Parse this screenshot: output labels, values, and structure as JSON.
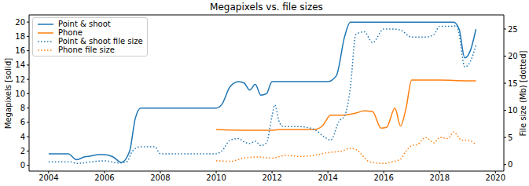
{
  "chart_data": {
    "type": "line",
    "title": "Megapixels vs. file sizes",
    "y_label": "Megapixels [solid]",
    "y2_label": "File size (Mb) [dotted]",
    "xlim": [
      2003.3,
      2020.3
    ],
    "xticks": [
      2004,
      2006,
      2008,
      2010,
      2012,
      2014,
      2016,
      2018,
      2020
    ],
    "ylim": [
      -0.8,
      21
    ],
    "yticks": [
      0,
      2,
      4,
      6,
      8,
      10,
      12,
      14,
      16,
      18,
      20
    ],
    "y2lim": [
      -1.2,
      27.6
    ],
    "y2ticks": [
      0,
      5,
      10,
      15,
      20,
      25
    ],
    "grid": false,
    "legend": "upper left",
    "series": [
      {
        "name": "Point & shoot",
        "color": "#1f77b4",
        "line_style": "solid",
        "axis": "y",
        "x": [
          2004,
          2004.7,
          2005,
          2005.3,
          2005.5,
          2005.8,
          2006,
          2006.3,
          2006.6,
          2006.9,
          2007.1,
          2007.3,
          2008,
          2010,
          2010.2,
          2010.5,
          2010.8,
          2011,
          2011.2,
          2011.4,
          2011.6,
          2011.8,
          2012,
          2013,
          2014,
          2014.3,
          2014.6,
          2014.8,
          2015,
          2016,
          2017,
          2018,
          2018.5,
          2018.7,
          2018.9,
          2019.1,
          2019.3
        ],
        "values": [
          1.6,
          1.6,
          0.8,
          1.2,
          1.3,
          1.5,
          1.5,
          1.2,
          0.4,
          2,
          6.5,
          8,
          8,
          8,
          8.5,
          11,
          11.7,
          11.5,
          10.5,
          11.3,
          9.8,
          10,
          11.7,
          11.7,
          11.7,
          12.5,
          18,
          20,
          20,
          20,
          20,
          20,
          20,
          19,
          15,
          16,
          19
        ]
      },
      {
        "name": "Phone",
        "color": "#ff7f0e",
        "line_style": "solid",
        "axis": "y",
        "x": [
          2010,
          2011,
          2012,
          2012.3,
          2013.5,
          2013.8,
          2014.1,
          2014.5,
          2015,
          2015.3,
          2015.6,
          2015.9,
          2016.1,
          2016.4,
          2016.6,
          2016.8,
          2017,
          2018,
          2019,
          2019.3
        ],
        "values": [
          5,
          4.9,
          4.9,
          5,
          5,
          5.5,
          7,
          7,
          7.3,
          7.6,
          7.5,
          5.2,
          5.3,
          8,
          5.5,
          8,
          11.9,
          11.9,
          11.8,
          11.8
        ]
      },
      {
        "name": "Point & shoot file size",
        "color": "#1f77b4",
        "line_style": "dotted",
        "axis": "y2",
        "x": [
          2004,
          2004.8,
          2005,
          2005.5,
          2006,
          2006.5,
          2006.8,
          2007,
          2007.3,
          2007.8,
          2008,
          2009,
          2010,
          2010.2,
          2010.5,
          2010.8,
          2011,
          2011.2,
          2011.4,
          2011.6,
          2011.8,
          2012,
          2012.1,
          2012.25,
          2012.4,
          2013,
          2013.5,
          2013.9,
          2014.1,
          2014.4,
          2014.6,
          2014.8,
          2015,
          2015.3,
          2015.6,
          2016,
          2016.3,
          2016.6,
          2017,
          2017.5,
          2017.8,
          2018,
          2018.5,
          2018.6,
          2018.7,
          2018.9,
          2019.1,
          2019.3
        ],
        "values": [
          0.5,
          0.5,
          0.2,
          0.5,
          0.7,
          0.3,
          0.5,
          2.5,
          3.3,
          3.3,
          2,
          2,
          2,
          2.5,
          4.5,
          4.8,
          4.2,
          3.9,
          4.3,
          3.5,
          4,
          9,
          11,
          8,
          7,
          7,
          6.5,
          5,
          4.5,
          8,
          9,
          14,
          24,
          24.5,
          22.5,
          25,
          25,
          24.8,
          23.5,
          23.5,
          24,
          25.5,
          25.5,
          25.7,
          24,
          18,
          19,
          22
        ]
      },
      {
        "name": "Phone file size",
        "color": "#ff7f0e",
        "line_style": "dotted",
        "axis": "y2",
        "x": [
          2010,
          2010.5,
          2011,
          2011.5,
          2012,
          2012.5,
          2013,
          2013.5,
          2014,
          2014.5,
          2014.8,
          2015,
          2015.5,
          2016,
          2016.3,
          2016.6,
          2016.8,
          2017,
          2017.2,
          2017.5,
          2017.8,
          2018,
          2018.3,
          2018.5,
          2018.8,
          2019,
          2019.3
        ],
        "values": [
          0.7,
          0.6,
          1.2,
          1.4,
          1.2,
          1.7,
          1.5,
          1.7,
          2.2,
          2.5,
          3,
          2.8,
          0.5,
          0.2,
          0.5,
          1,
          2.5,
          3.5,
          3.7,
          5,
          4,
          5,
          4.8,
          6,
          4.5,
          4.5,
          3.7
        ]
      }
    ]
  }
}
